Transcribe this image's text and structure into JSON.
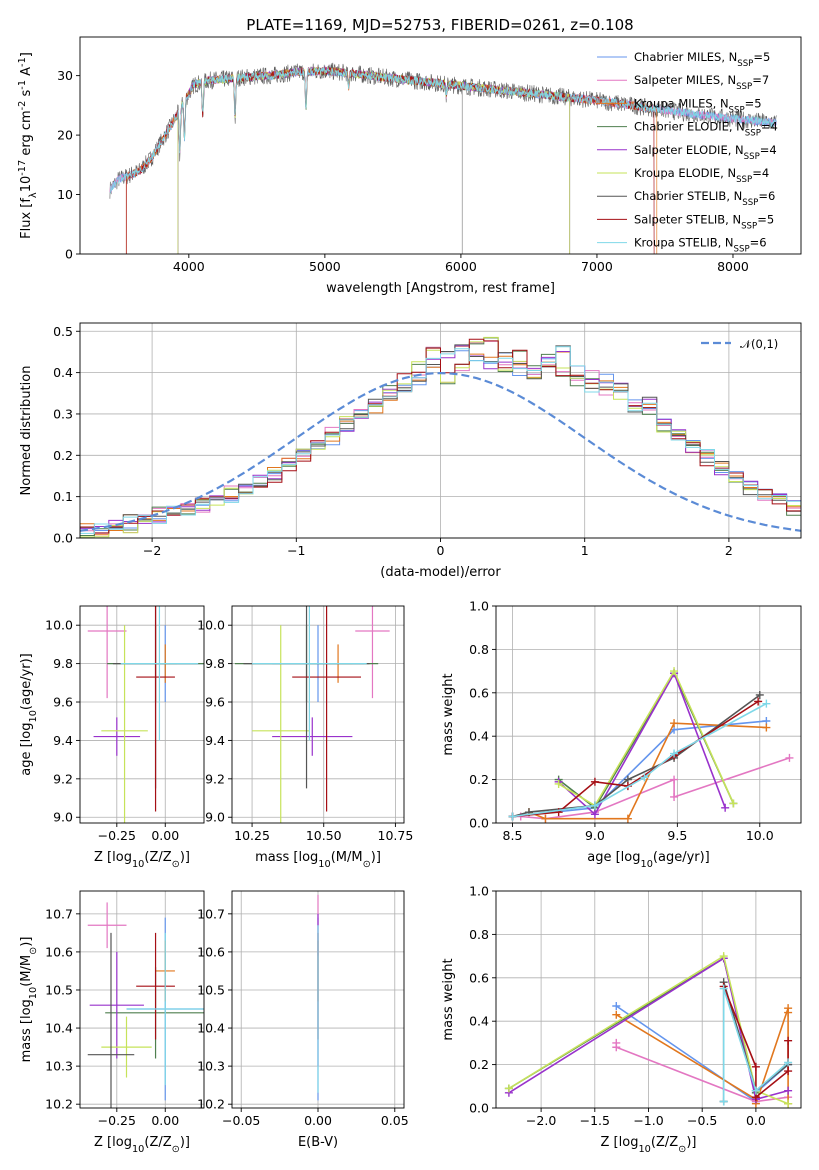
{
  "page_title": "PLATE=1169, MJD=52753, FIBERID=0261, z=0.108",
  "models": [
    {
      "name": "Chabrier MILES, N$_{SSP}$=5",
      "imf": "Chabrier",
      "lib": "MILES",
      "nssp": "5",
      "color": "#6495ed"
    },
    {
      "name": "Salpeter MILES, N$_{SSP}$=7",
      "imf": "Salpeter",
      "lib": "MILES",
      "nssp": "7",
      "color": "#e377c2"
    },
    {
      "name": "Kroupa MILES, N$_{SSP}$=5",
      "imf": "Kroupa",
      "lib": "MILES",
      "nssp": "5",
      "color": "#e1771e"
    },
    {
      "name": "Chabrier ELODIE, N$_{SSP}$=4",
      "imf": "Chabrier",
      "lib": "ELODIE",
      "nssp": "4",
      "color": "#4f7f4f"
    },
    {
      "name": "Salpeter ELODIE, N$_{SSP}$=4",
      "imf": "Salpeter",
      "lib": "ELODIE",
      "nssp": "4",
      "color": "#9932cc"
    },
    {
      "name": "Kroupa ELODIE, N$_{SSP}$=4",
      "imf": "Kroupa",
      "lib": "ELODIE",
      "nssp": "4",
      "color": "#c6e35a"
    },
    {
      "name": "Chabrier STELIB, N$_{SSP}$=6",
      "imf": "Chabrier",
      "lib": "STELIB",
      "nssp": "6",
      "color": "#555555"
    },
    {
      "name": "Salpeter STELIB, N$_{SSP}$=5",
      "imf": "Salpeter",
      "lib": "STELIB",
      "nssp": "5",
      "color": "#a50f15"
    },
    {
      "name": "Kroupa STELIB, N$_{SSP}$=6",
      "imf": "Kroupa",
      "lib": "STELIB",
      "nssp": "6",
      "color": "#7fd8e8"
    }
  ],
  "chart_data": [
    {
      "id": "spectrum",
      "type": "line",
      "title": "PLATE=1169, MJD=52753, FIBERID=0261, z=0.108",
      "xlabel": "wavelength [Angstrom, rest frame]",
      "ylabel": "Flux [f$_\\lambda$10$^{-17}$ erg cm$^{-2}$ s$^{-1}$ A$^{-1}$]",
      "xlim": [
        3200,
        8500
      ],
      "ylim": [
        0,
        36.5
      ],
      "xticks": [
        4000,
        5000,
        6000,
        7000,
        8000
      ],
      "yticks": [
        0,
        10,
        20,
        30
      ],
      "grid": false,
      "legend": "upper right",
      "continuum": {
        "x": [
          3420,
          3480,
          3560,
          3640,
          3720,
          3800,
          3880,
          3960,
          4040,
          4150,
          4300,
          4450,
          4600,
          4800,
          5000,
          5200,
          5400,
          5600,
          5800,
          6000,
          6200,
          6400,
          6600,
          6800,
          7000,
          7200,
          7400,
          7600,
          7800,
          8000,
          8200,
          8320
        ],
        "y": [
          10.8,
          12.5,
          13.2,
          14.0,
          16.0,
          19.0,
          22.0,
          25.5,
          28.5,
          29.2,
          29.5,
          29.8,
          30.0,
          30.6,
          30.8,
          30.4,
          29.8,
          29.3,
          28.8,
          28.3,
          27.8,
          27.3,
          26.8,
          26.3,
          25.8,
          25.2,
          24.5,
          23.9,
          23.3,
          22.8,
          22.3,
          22.0
        ]
      },
      "absorption_lines": [
        {
          "x": 3934,
          "depth": 8.0
        },
        {
          "x": 3968,
          "depth": 7.0
        },
        {
          "x": 4102,
          "depth": 6.0
        },
        {
          "x": 4340,
          "depth": 7.0
        },
        {
          "x": 4861,
          "depth": 7.0
        },
        {
          "x": 5175,
          "depth": 2.5
        },
        {
          "x": 5893,
          "depth": 2.0
        }
      ],
      "truncations": [
        {
          "series": "Kroupa MILES, N$_{SSP}$=5",
          "x": [
            3540,
            7440
          ]
        },
        {
          "series": "Salpeter STELIB, N$_{SSP}$=5",
          "x": [
            3540,
            7420
          ]
        },
        {
          "series": "Kroupa ELODIE, N$_{SSP}$=4",
          "x": [
            3920,
            6800
          ]
        },
        {
          "series": "Chabrier ELODIE, N$_{SSP}$=4",
          "x": [
            3920,
            6800
          ]
        },
        {
          "series": "Salpeter ELODIE, N$_{SSP}$=4",
          "x": [
            3920,
            6800
          ]
        }
      ],
      "data_gaps": [
        6010
      ]
    },
    {
      "id": "residuals",
      "type": "histogram",
      "xlabel": "(data-model)/error",
      "ylabel": "Normed distribution",
      "xlim": [
        -2.5,
        2.5
      ],
      "ylim": [
        0,
        0.52
      ],
      "xticks": [
        -2,
        -1,
        0,
        1,
        2
      ],
      "yticks": [
        0.0,
        0.1,
        0.2,
        0.3,
        0.4,
        0.5
      ],
      "grid": true,
      "legend": "upper right",
      "reference_curve": {
        "label": "$\\mathcal{N}(0,1)$",
        "color": "#5b8bd6",
        "style": "dashed"
      },
      "bin_width": 0.1,
      "bin_start": -2.5,
      "shape_note": "gaussian",
      "heights": [
        [
          0.02,
          0.02,
          0.03,
          0.04,
          0.04,
          0.05,
          0.06,
          0.07,
          0.08,
          0.1,
          0.1,
          0.12,
          0.14,
          0.16,
          0.18,
          0.2,
          0.22,
          0.24,
          0.27,
          0.3,
          0.32,
          0.35,
          0.37,
          0.38,
          0.42,
          0.44,
          0.47,
          0.44,
          0.42,
          0.44,
          0.41,
          0.4,
          0.42,
          0.45,
          0.4,
          0.37,
          0.38,
          0.36,
          0.32,
          0.33,
          0.28,
          0.25,
          0.22,
          0.2,
          0.17,
          0.15,
          0.12,
          0.11,
          0.09,
          0.08,
          0.07,
          0.05,
          0.06,
          0.05,
          0.04,
          0.03,
          0.03,
          0.02,
          0.02,
          0.02
        ],
        [
          0.02,
          0.02,
          0.03,
          0.03,
          0.04,
          0.06,
          0.06,
          0.07,
          0.08,
          0.09,
          0.11,
          0.12,
          0.14,
          0.15,
          0.18,
          0.2,
          0.22,
          0.25,
          0.28,
          0.3,
          0.32,
          0.36,
          0.38,
          0.41,
          0.45,
          0.39,
          0.41,
          0.47,
          0.48,
          0.42,
          0.44,
          0.4,
          0.43,
          0.4,
          0.38,
          0.39,
          0.36,
          0.34,
          0.31,
          0.3,
          0.27,
          0.25,
          0.22,
          0.19,
          0.17,
          0.15,
          0.12,
          0.1,
          0.09,
          0.07,
          0.06,
          0.05,
          0.06,
          0.04,
          0.04,
          0.03,
          0.03,
          0.02,
          0.02,
          0.02
        ]
      ]
    },
    {
      "id": "age-vs-Z",
      "type": "errorbar",
      "xlabel": "Z [log$_{10}$(Z/Z$_\\odot$)]",
      "ylabel": "age  [log$_{10}$(age/yr)]",
      "xlim": [
        -0.44,
        0.2
      ],
      "ylim": [
        8.97,
        10.1
      ],
      "xticks": [
        -0.25,
        0.0
      ],
      "yticks": [
        9.0,
        9.2,
        9.4,
        9.6,
        9.8,
        10.0
      ],
      "grid": true,
      "points": [
        {
          "series": 0,
          "x": 0.0,
          "y": 9.8,
          "xerr": 0.2,
          "yerr": 0.2
        },
        {
          "series": 1,
          "x": -0.3,
          "y": 9.97,
          "xerr": 0.1,
          "yerr": 0.35
        },
        {
          "series": 2,
          "x": 0.0,
          "y": 9.8,
          "xerr": 0.06,
          "yerr": 0.1
        },
        {
          "series": 3,
          "x": -0.05,
          "y": 9.8,
          "xerr": 0.25,
          "yerr": 0.2
        },
        {
          "series": 4,
          "x": -0.25,
          "y": 9.42,
          "xerr": 0.12,
          "yerr": 0.1
        },
        {
          "series": 5,
          "x": -0.21,
          "y": 9.45,
          "xerr": 0.12,
          "yerr": 0.55
        },
        {
          "series": 6,
          "x": -0.05,
          "y": 9.8,
          "xerr": 0.22,
          "yerr": 0.65
        },
        {
          "series": 7,
          "x": -0.05,
          "y": 9.73,
          "xerr": 0.1,
          "yerr": 0.7
        },
        {
          "series": 8,
          "x": -0.03,
          "y": 9.8,
          "xerr": 0.2,
          "yerr": 0.4
        }
      ]
    },
    {
      "id": "age-vs-mass",
      "type": "errorbar",
      "xlabel": "mass [log$_{10}$(M/M$_\\odot$)]",
      "ylabel": "",
      "xlim": [
        10.18,
        10.78
      ],
      "ylim": [
        8.97,
        10.1
      ],
      "xticks": [
        10.25,
        10.5,
        10.75
      ],
      "yticks": [
        9.0,
        9.2,
        9.4,
        9.6,
        9.8,
        10.0
      ],
      "grid": true,
      "points": [
        {
          "series": 0,
          "x": 10.48,
          "y": 9.8,
          "xerr": 0.16,
          "yerr": 0.2
        },
        {
          "series": 1,
          "x": 10.67,
          "y": 9.97,
          "xerr": 0.06,
          "yerr": 0.35
        },
        {
          "series": 2,
          "x": 10.55,
          "y": 9.8,
          "xerr": 0.05,
          "yerr": 0.1
        },
        {
          "series": 3,
          "x": 10.44,
          "y": 9.8,
          "xerr": 0.25,
          "yerr": 0.2
        },
        {
          "series": 4,
          "x": 10.46,
          "y": 9.42,
          "xerr": 0.14,
          "yerr": 0.1
        },
        {
          "series": 5,
          "x": 10.35,
          "y": 9.45,
          "xerr": 0.1,
          "yerr": 0.55
        },
        {
          "series": 6,
          "x": 10.44,
          "y": 9.8,
          "xerr": 0.22,
          "yerr": 0.65
        },
        {
          "series": 7,
          "x": 10.51,
          "y": 9.73,
          "xerr": 0.12,
          "yerr": 0.7
        },
        {
          "series": 8,
          "x": 10.45,
          "y": 9.8,
          "xerr": 0.2,
          "yerr": 0.4
        }
      ]
    },
    {
      "id": "mass-weight-vs-age",
      "type": "line",
      "xlabel": "age  [log$_{10}$(age/yr)]",
      "ylabel": "mass weight",
      "xlim": [
        8.4,
        10.25
      ],
      "ylim": [
        0,
        1.0
      ],
      "xticks": [
        8.5,
        9.0,
        9.5,
        10.0
      ],
      "yticks": [
        0.0,
        0.2,
        0.4,
        0.6,
        0.8,
        1.0
      ],
      "grid": true,
      "series": [
        {
          "series": 0,
          "x": [
            8.5,
            9.0,
            9.48,
            10.04
          ],
          "y": [
            0.03,
            0.07,
            0.43,
            0.47
          ]
        },
        {
          "series": 1,
          "x": [
            8.55,
            8.7,
            9.0,
            9.48,
            9.48,
            10.18
          ],
          "y": [
            0.03,
            0.02,
            0.05,
            0.2,
            0.12,
            0.3
          ]
        },
        {
          "series": 2,
          "x": [
            8.6,
            8.7,
            9.2,
            9.48,
            10.04
          ],
          "y": [
            0.05,
            0.02,
            0.02,
            0.46,
            0.44
          ]
        },
        {
          "series": 3,
          "x": [
            8.78,
            9.0,
            9.48,
            9.84
          ],
          "y": [
            0.2,
            0.07,
            0.69,
            0.09
          ]
        },
        {
          "series": 4,
          "x": [
            8.78,
            9.0,
            9.48,
            9.79
          ],
          "y": [
            0.19,
            0.04,
            0.69,
            0.07
          ]
        },
        {
          "series": 5,
          "x": [
            8.78,
            9.0,
            9.48,
            9.84
          ],
          "y": [
            0.18,
            0.08,
            0.7,
            0.09
          ]
        },
        {
          "series": 6,
          "x": [
            8.5,
            8.6,
            9.0,
            9.2,
            9.48,
            10.0
          ],
          "y": [
            0.03,
            0.05,
            0.08,
            0.2,
            0.3,
            0.59
          ]
        },
        {
          "series": 7,
          "x": [
            8.5,
            8.78,
            9.0,
            9.2,
            9.48,
            9.99
          ],
          "y": [
            0.03,
            0.05,
            0.19,
            0.17,
            0.31,
            0.56
          ]
        },
        {
          "series": 8,
          "x": [
            8.5,
            9.0,
            9.3,
            9.48,
            10.04
          ],
          "y": [
            0.03,
            0.08,
            0.21,
            0.32,
            0.55
          ]
        }
      ]
    },
    {
      "id": "mass-vs-Z",
      "type": "errorbar",
      "xlabel": "Z [log$_{10}$(Z/Z$_\\odot$)]",
      "ylabel": "mass [log$_{10}$(M/M$_\\odot$)]",
      "xlim": [
        -0.44,
        0.2
      ],
      "ylim": [
        10.19,
        10.76
      ],
      "xticks": [
        -0.25,
        0.0
      ],
      "yticks": [
        10.2,
        10.3,
        10.4,
        10.5,
        10.6,
        10.7
      ],
      "grid": true,
      "points": [
        {
          "series": 0,
          "x": 0.0,
          "y": 10.45,
          "xerr": 0.2,
          "yerr": 0.24
        },
        {
          "series": 1,
          "x": -0.3,
          "y": 10.67,
          "xerr": 0.1,
          "yerr": 0.06
        },
        {
          "series": 2,
          "x": 0.0,
          "y": 10.55,
          "xerr": 0.05,
          "yerr": 0.08
        },
        {
          "series": 3,
          "x": -0.05,
          "y": 10.44,
          "xerr": 0.26,
          "yerr": 0.12
        },
        {
          "series": 4,
          "x": -0.25,
          "y": 10.46,
          "xerr": 0.14,
          "yerr": 0.14
        },
        {
          "series": 5,
          "x": -0.2,
          "y": 10.35,
          "xerr": 0.13,
          "yerr": 0.08
        },
        {
          "series": 6,
          "x": -0.28,
          "y": 10.33,
          "xerr": 0.12,
          "yerr": 0.32
        },
        {
          "series": 7,
          "x": -0.05,
          "y": 10.51,
          "xerr": 0.1,
          "yerr": 0.14
        },
        {
          "series": 8,
          "x": 0.0,
          "y": 10.45,
          "xerr": 0.2,
          "yerr": 0.2
        }
      ]
    },
    {
      "id": "mass-vs-EBV",
      "type": "errorbar",
      "xlabel": "E(B-V)",
      "ylabel": "",
      "xlim": [
        -0.056,
        0.056
      ],
      "ylim": [
        10.19,
        10.76
      ],
      "xticks": [
        -0.05,
        0.0,
        0.05
      ],
      "yticks": [
        10.2,
        10.3,
        10.4,
        10.5,
        10.6,
        10.7
      ],
      "grid": true,
      "points": [
        {
          "series": 0,
          "x": 0.0,
          "y": 10.45,
          "xerr": 0.0,
          "yerr": 0.24
        },
        {
          "series": 1,
          "x": 0.0,
          "y": 10.67,
          "xerr": 0.0,
          "yerr": 0.08
        },
        {
          "series": 2,
          "x": 0.0,
          "y": 10.55,
          "xerr": 0.0,
          "yerr": 0.08
        },
        {
          "series": 4,
          "x": 0.0,
          "y": 10.5,
          "xerr": 0.0,
          "yerr": 0.2
        },
        {
          "series": 7,
          "x": 0.0,
          "y": 10.51,
          "xerr": 0.0,
          "yerr": 0.14
        },
        {
          "series": 8,
          "x": 0.0,
          "y": 10.45,
          "xerr": 0.0,
          "yerr": 0.22
        }
      ]
    },
    {
      "id": "mass-weight-vs-Z",
      "type": "line",
      "xlabel": "Z [log$_{10}$(Z/Z$_\\odot$)]",
      "ylabel": "mass weight",
      "xlim": [
        -2.42,
        0.42
      ],
      "ylim": [
        0,
        1.0
      ],
      "xticks": [
        -2.0,
        -1.5,
        -1.0,
        -0.5,
        0.0
      ],
      "yticks": [
        0.0,
        0.2,
        0.4,
        0.6,
        0.8,
        1.0
      ],
      "grid": true,
      "series": [
        {
          "series": 0,
          "x": [
            -1.3,
            0.0,
            0.0,
            0.3
          ],
          "y": [
            0.47,
            0.03,
            0.07,
            0.2
          ]
        },
        {
          "series": 1,
          "x": [
            -1.3,
            -1.3,
            0.0,
            0.3
          ],
          "y": [
            0.3,
            0.28,
            0.03,
            0.05
          ]
        },
        {
          "series": 2,
          "x": [
            -1.3,
            0.0,
            0.0,
            0.3,
            0.3,
            0.3
          ],
          "y": [
            0.43,
            0.04,
            0.02,
            0.46,
            0.44,
            0.02
          ]
        },
        {
          "series": 3,
          "x": [
            -2.3,
            -0.3,
            0.0
          ],
          "y": [
            0.09,
            0.69,
            0.07
          ]
        },
        {
          "series": 4,
          "x": [
            -2.3,
            -0.3,
            0.0,
            0.3
          ],
          "y": [
            0.07,
            0.69,
            0.04,
            0.08
          ]
        },
        {
          "series": 5,
          "x": [
            -2.3,
            -0.3,
            0.0,
            0.3
          ],
          "y": [
            0.09,
            0.7,
            0.08,
            0.02
          ]
        },
        {
          "series": 6,
          "x": [
            -0.3,
            -0.3,
            0.0,
            0.3
          ],
          "y": [
            0.03,
            0.58,
            0.08,
            0.2
          ]
        },
        {
          "series": 7,
          "x": [
            -0.3,
            0.0,
            0.0,
            0.3,
            0.3
          ],
          "y": [
            0.56,
            0.19,
            0.05,
            0.17,
            0.31
          ]
        },
        {
          "series": 8,
          "x": [
            -0.3,
            -0.3,
            0.0,
            0.3
          ],
          "y": [
            0.03,
            0.55,
            0.08,
            0.21
          ]
        }
      ]
    }
  ]
}
